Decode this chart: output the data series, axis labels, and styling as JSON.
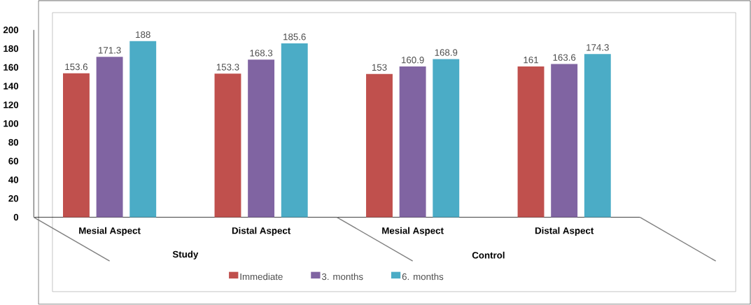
{
  "chart_data": {
    "type": "bar",
    "categories": [
      "Mesial Aspect",
      "Distal Aspect",
      "Mesial Aspect",
      "Distal Aspect"
    ],
    "series": [
      {
        "name": "Immediate",
        "color": "#c0504d",
        "values": [
          153.6,
          153.3,
          153,
          161
        ]
      },
      {
        "name": "3. months",
        "color": "#8064a2",
        "values": [
          171.3,
          168.3,
          160.9,
          163.6
        ]
      },
      {
        "name": "6. months",
        "color": "#4bacc6",
        "values": [
          188,
          185.6,
          168.9,
          174.3
        ]
      }
    ],
    "ylim": [
      0,
      200
    ],
    "yticks": [
      0,
      20,
      40,
      60,
      80,
      100,
      120,
      140,
      160,
      180,
      200
    ],
    "annotations": [
      "Study",
      "Control"
    ],
    "data_labels": true,
    "legend": "bottom",
    "grid": false
  }
}
